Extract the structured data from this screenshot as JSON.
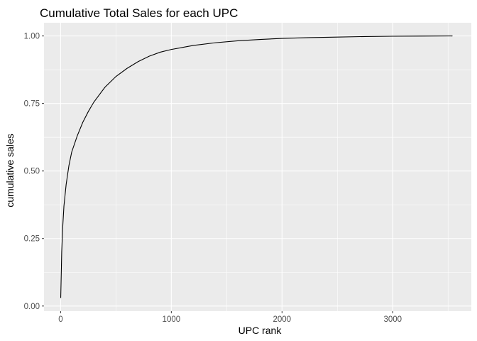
{
  "chart_data": {
    "type": "line",
    "title": "Cumulative Total Sales for each UPC",
    "xlabel": "UPC rank",
    "ylabel": "cumulative sales",
    "xlim": [
      -150,
      3710
    ],
    "ylim": [
      -0.019,
      1.049
    ],
    "x_ticks": [
      0,
      1000,
      2000,
      3000
    ],
    "x_tick_labels": [
      "0",
      "1000",
      "2000",
      "3000"
    ],
    "y_ticks": [
      0,
      0.25,
      0.5,
      0.75,
      1.0
    ],
    "y_tick_labels": [
      "0.00",
      "0.25",
      "0.50",
      "0.75",
      "1.00"
    ],
    "grid": true,
    "panel_background": "#ebebeb",
    "grid_color": "#ffffff",
    "line_color": "#000000",
    "series": [
      {
        "points": [
          [
            1,
            0.03
          ],
          [
            10,
            0.2
          ],
          [
            20,
            0.3
          ],
          [
            30,
            0.37
          ],
          [
            50,
            0.45
          ],
          [
            75,
            0.52
          ],
          [
            100,
            0.57
          ],
          [
            150,
            0.63
          ],
          [
            200,
            0.68
          ],
          [
            250,
            0.72
          ],
          [
            300,
            0.755
          ],
          [
            400,
            0.81
          ],
          [
            500,
            0.85
          ],
          [
            600,
            0.88
          ],
          [
            700,
            0.905
          ],
          [
            800,
            0.925
          ],
          [
            900,
            0.94
          ],
          [
            1000,
            0.95
          ],
          [
            1200,
            0.965
          ],
          [
            1400,
            0.975
          ],
          [
            1600,
            0.982
          ],
          [
            1800,
            0.987
          ],
          [
            2000,
            0.991
          ],
          [
            2250,
            0.994
          ],
          [
            2500,
            0.996
          ],
          [
            2750,
            0.998
          ],
          [
            3000,
            0.999
          ],
          [
            3250,
            0.9995
          ],
          [
            3540,
            1.0
          ]
        ]
      }
    ]
  }
}
